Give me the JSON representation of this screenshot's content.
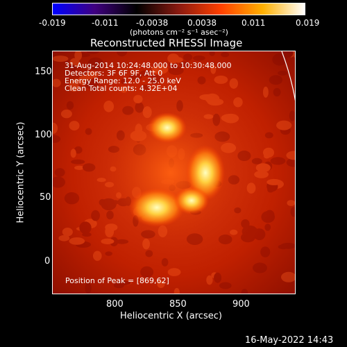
{
  "colorbar": {
    "ticks": [
      "-0.019",
      "-0.011",
      "-0.0038",
      "0.0038",
      "0.011",
      "0.019"
    ],
    "unit_label": "(photons cm⁻² s⁻¹ asec⁻²)",
    "colors": [
      "#0000ff",
      "#400080",
      "#000000",
      "#8a1a10",
      "#ff4000",
      "#ffb000",
      "#ffffff"
    ]
  },
  "plot": {
    "title": "Reconstructed RHESSI Image",
    "info_lines": [
      "31-Aug-2014 10:24:48.000 to 10:30:48.000",
      "Detectors: 3F 6F 9F, Att 0",
      "Energy Range: 12.0 - 25.0 keV",
      "Clean     Total counts: 4.32E+04"
    ],
    "peak_label": "Position of Peak = [869,62]",
    "x_axis": {
      "label": "Heliocentric X (arcsec)",
      "ticks": [
        "800",
        "850",
        "900"
      ]
    },
    "y_axis": {
      "label": "Heliocentric Y (arcsec)",
      "ticks": [
        "150",
        "100",
        "50",
        "0"
      ]
    }
  },
  "footer": {
    "timestamp": "16-May-2022 14:43"
  }
}
